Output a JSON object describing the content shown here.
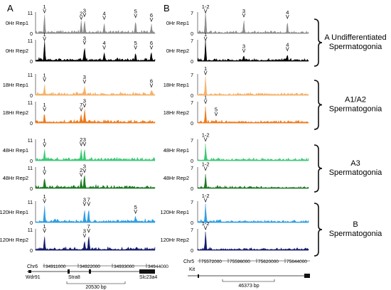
{
  "panel_letters": [
    "A",
    "B"
  ],
  "rows": [
    {
      "label": "0Hr Rep1",
      "ymax_A": "11",
      "ymin_A": "0",
      "ymax_B": "7",
      "ymin_B": "0",
      "color": "#8c8c8c",
      "group": 0
    },
    {
      "label": "0Hr Rep2",
      "ymax_A": "11",
      "ymin_A": "0",
      "ymax_B": "7",
      "ymin_B": "0",
      "color": "#000000",
      "group": 0
    },
    {
      "label": "18Hr Rep1",
      "ymax_A": "11",
      "ymin_A": "0",
      "ymax_B": "7",
      "ymin_B": "0",
      "color": "#f5b168",
      "group": 1
    },
    {
      "label": "18Hr Rep2",
      "ymax_A": "11",
      "ymin_A": "0",
      "ymax_B": "7",
      "ymin_B": "0",
      "color": "#ee7a1c",
      "group": 1
    },
    {
      "label": "48Hr Rep1",
      "ymax_A": "11",
      "ymin_A": "0",
      "ymax_B": "7",
      "ymin_B": "0",
      "color": "#39c872",
      "group": 2
    },
    {
      "label": "48Hr Rep2",
      "ymax_A": "11",
      "ymin_A": "0",
      "ymax_B": "7",
      "ymin_B": "0",
      "color": "#1b7a23",
      "group": 2
    },
    {
      "label": "120Hr Rep1",
      "ymax_A": "11",
      "ymin_A": "0",
      "ymax_B": "7",
      "ymin_B": "0",
      "color": "#2f9de2",
      "group": 3
    },
    {
      "label": "120Hr Rep2",
      "ymax_A": "11",
      "ymin_A": "0",
      "ymax_B": "7",
      "ymin_B": "0",
      "color": "#131a6b",
      "group": 3
    }
  ],
  "groups": [
    [
      "A Undifferentiated",
      "Spermatogonia"
    ],
    [
      "A1/A2",
      "Spermatogonia"
    ],
    [
      "A3",
      "Spermatogonia"
    ],
    [
      "B",
      "Spermatogonia"
    ]
  ],
  "peak_labels_A": [
    [
      "1",
      "2",
      "3",
      "4",
      "5",
      "6"
    ],
    [
      "1",
      "3",
      "4",
      "5",
      "6"
    ],
    [
      "1",
      "3",
      "6"
    ],
    [
      "1",
      "7",
      "3"
    ],
    [
      "1",
      "2",
      "3"
    ],
    [
      "1",
      "2",
      "3"
    ],
    [
      "1",
      "3",
      "7",
      "5"
    ],
    [
      "1",
      "3",
      "7"
    ]
  ],
  "peak_labels_B": [
    [
      "1-2",
      "3",
      "4"
    ],
    [
      "1",
      "3",
      "4"
    ],
    [
      "1"
    ],
    [
      "1",
      "5"
    ],
    [
      "1-2"
    ],
    [
      "1-2"
    ],
    [
      "1-2"
    ],
    [
      "1-2"
    ]
  ],
  "track_A": {
    "chrom": "Chr6",
    "ticks": [
      "34911000",
      "34922000",
      "34933000",
      "34944000"
    ],
    "genes": [
      "Wdr91",
      "Stra8",
      "Slc23a4"
    ],
    "scale": "20530 bp"
  },
  "track_B": {
    "chrom": "Chr5",
    "ticks": [
      "75572000",
      "75596000",
      "75620000",
      "75644000"
    ],
    "genes": [
      "Kit"
    ],
    "scale": "46373 bp"
  },
  "chart_data": [
    {
      "type": "area",
      "panel": "A",
      "ylim": [
        0,
        11
      ],
      "x_labels": [
        "34911000",
        "34922000",
        "34933000",
        "34944000"
      ],
      "series": [
        {
          "name": "0Hr Rep1",
          "peaks": [
            {
              "label": "1",
              "x": 34909000,
              "y": 9.5
            },
            {
              "label": "2",
              "x": 34921300,
              "y": 5
            },
            {
              "label": "3",
              "x": 34922400,
              "y": 6.5
            },
            {
              "label": "4",
              "x": 34929000,
              "y": 5
            },
            {
              "label": "5",
              "x": 34939500,
              "y": 6
            },
            {
              "label": "6",
              "x": 34944800,
              "y": 4
            }
          ]
        },
        {
          "name": "0Hr Rep2",
          "peaks": [
            {
              "label": "1",
              "x": 34909000,
              "y": 10.5
            },
            {
              "label": "3",
              "x": 34922400,
              "y": 6.5
            },
            {
              "label": "4",
              "x": 34929000,
              "y": 4
            },
            {
              "label": "5",
              "x": 34939500,
              "y": 4
            },
            {
              "label": "6",
              "x": 34944800,
              "y": 4
            }
          ]
        },
        {
          "name": "18Hr Rep1",
          "peaks": [
            {
              "label": "1",
              "x": 34909000,
              "y": 5
            },
            {
              "label": "3",
              "x": 34922400,
              "y": 4
            },
            {
              "label": "6",
              "x": 34944800,
              "y": 2
            }
          ]
        },
        {
          "name": "18Hr Rep2",
          "peaks": [
            {
              "label": "1",
              "x": 34909000,
              "y": 4
            },
            {
              "label": "7",
              "x": 34921300,
              "y": 4
            },
            {
              "label": "3",
              "x": 34922400,
              "y": 6
            }
          ]
        },
        {
          "name": "48Hr Rep1",
          "peaks": [
            {
              "label": "1",
              "x": 34909000,
              "y": 5
            },
            {
              "label": "2",
              "x": 34921300,
              "y": 5.5
            },
            {
              "label": "3",
              "x": 34922400,
              "y": 5.5
            }
          ]
        },
        {
          "name": "48Hr Rep2",
          "peaks": [
            {
              "label": "1",
              "x": 34909000,
              "y": 5
            },
            {
              "label": "2",
              "x": 34921300,
              "y": 4
            },
            {
              "label": "3",
              "x": 34922400,
              "y": 6
            }
          ]
        },
        {
          "name": "120Hr Rep1",
          "peaks": [
            {
              "label": "1",
              "x": 34909000,
              "y": 8
            },
            {
              "label": "3",
              "x": 34922400,
              "y": 6.5
            },
            {
              "label": "7",
              "x": 34923800,
              "y": 6.5
            },
            {
              "label": "5",
              "x": 34939500,
              "y": 2.5
            }
          ]
        },
        {
          "name": "120Hr Rep2",
          "peaks": [
            {
              "label": "1",
              "x": 34909000,
              "y": 7
            },
            {
              "label": "3",
              "x": 34922400,
              "y": 4.5
            },
            {
              "label": "7",
              "x": 34923800,
              "y": 7
            }
          ]
        }
      ]
    },
    {
      "type": "area",
      "panel": "B",
      "ylim": [
        0,
        7
      ],
      "x_labels": [
        "75572000",
        "75596000",
        "75620000",
        "75644000"
      ],
      "series": [
        {
          "name": "0Hr Rep1",
          "peaks": [
            {
              "label": "1-2",
              "x": 75572000,
              "y": 7
            },
            {
              "label": "3",
              "x": 75601000,
              "y": 4
            },
            {
              "label": "4",
              "x": 75634000,
              "y": 3.5
            }
          ]
        },
        {
          "name": "0Hr Rep2",
          "peaks": [
            {
              "label": "1",
              "x": 75572000,
              "y": 6.5
            },
            {
              "label": "3",
              "x": 75601000,
              "y": 1.5
            },
            {
              "label": "4",
              "x": 75634000,
              "y": 2
            }
          ]
        },
        {
          "name": "18Hr Rep1",
          "peaks": [
            {
              "label": "1",
              "x": 75572000,
              "y": 6
            }
          ]
        },
        {
          "name": "18Hr Rep2",
          "peaks": [
            {
              "label": "1",
              "x": 75572000,
              "y": 5
            },
            {
              "label": "5",
              "x": 75580000,
              "y": 1
            }
          ]
        },
        {
          "name": "48Hr Rep1",
          "peaks": [
            {
              "label": "1-2",
              "x": 75572000,
              "y": 5
            }
          ]
        },
        {
          "name": "48Hr Rep2",
          "peaks": [
            {
              "label": "1-2",
              "x": 75572000,
              "y": 4.5
            }
          ]
        },
        {
          "name": "120Hr Rep1",
          "peaks": [
            {
              "label": "1-2",
              "x": 75572000,
              "y": 6
            }
          ]
        },
        {
          "name": "120Hr Rep2",
          "peaks": [
            {
              "label": "1-2",
              "x": 75572000,
              "y": 6
            }
          ]
        }
      ]
    }
  ]
}
